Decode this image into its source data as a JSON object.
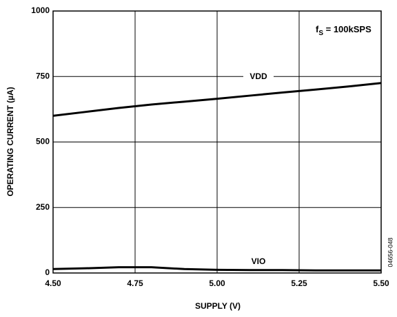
{
  "chart_data": {
    "type": "line",
    "xlabel": "SUPPLY (V)",
    "ylabel": "OPERATING CURRENT (µA)",
    "annotation": {
      "base": "f",
      "sub": "S",
      "rest": " = 100kSPS"
    },
    "figure_code": "04656-048",
    "x": [
      4.5,
      4.6,
      4.7,
      4.8,
      4.9,
      5.0,
      5.1,
      5.2,
      5.3,
      5.4,
      5.5
    ],
    "series": [
      {
        "name": "VDD",
        "color": "#000000",
        "values": [
          600,
          615,
          630,
          643,
          654,
          665,
          677,
          689,
          700,
          712,
          725
        ]
      },
      {
        "name": "VIO",
        "color": "#000000",
        "values": [
          15,
          18,
          22,
          22,
          15,
          12,
          11,
          11,
          10,
          10,
          10
        ]
      }
    ],
    "xlim": [
      4.5,
      5.5
    ],
    "xticks": [
      {
        "value": 4.5,
        "label": "4.50"
      },
      {
        "value": 4.75,
        "label": "4.75"
      },
      {
        "value": 5.0,
        "label": "5.00"
      },
      {
        "value": 5.25,
        "label": "5.25"
      },
      {
        "value": 5.5,
        "label": "5.50"
      }
    ],
    "ylim": [
      0,
      1000
    ],
    "yticks": [
      0,
      250,
      500,
      750,
      1000
    ],
    "grid": true
  }
}
